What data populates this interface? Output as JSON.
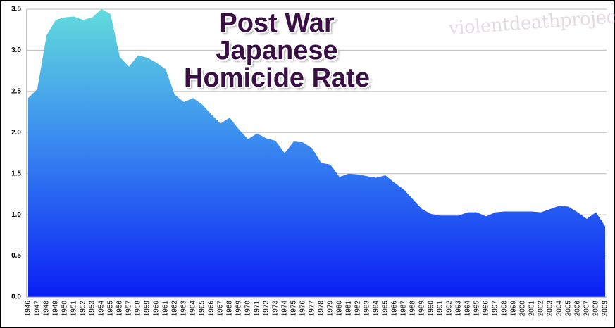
{
  "chart_data": {
    "type": "area",
    "title": "Post War Japanese Homicide Rate",
    "annotation": "violentdeathproject.com",
    "categories": [
      "1946",
      "1947",
      "1948",
      "1949",
      "1950",
      "1951",
      "1952",
      "1953",
      "1954",
      "1955",
      "1956",
      "1957",
      "1958",
      "1959",
      "1960",
      "1961",
      "1962",
      "1963",
      "1964",
      "1965",
      "1966",
      "1967",
      "1968",
      "1969",
      "1970",
      "1971",
      "1972",
      "1973",
      "1974",
      "1975",
      "1976",
      "1977",
      "1978",
      "1979",
      "1980",
      "1981",
      "1982",
      "1983",
      "1984",
      "1985",
      "1986",
      "1987",
      "1988",
      "1989",
      "1990",
      "1991",
      "1992",
      "1993",
      "1994",
      "1995",
      "1996",
      "1997",
      "1998",
      "1999",
      "2000",
      "2001",
      "2002",
      "2003",
      "2004",
      "2005",
      "2006",
      "2007",
      "2008",
      "2009"
    ],
    "values": [
      2.42,
      2.53,
      3.18,
      3.37,
      3.4,
      3.41,
      3.37,
      3.4,
      3.5,
      3.44,
      2.92,
      2.8,
      2.94,
      2.91,
      2.85,
      2.77,
      2.46,
      2.37,
      2.42,
      2.34,
      2.22,
      2.11,
      2.18,
      2.04,
      1.92,
      1.99,
      1.93,
      1.9,
      1.75,
      1.89,
      1.88,
      1.81,
      1.63,
      1.61,
      1.46,
      1.5,
      1.49,
      1.47,
      1.45,
      1.48,
      1.39,
      1.31,
      1.19,
      1.07,
      1.01,
      0.99,
      0.99,
      0.99,
      1.03,
      1.03,
      0.98,
      1.03,
      1.04,
      1.04,
      1.04,
      1.04,
      1.03,
      1.07,
      1.11,
      1.1,
      1.03,
      0.95,
      1.03,
      0.86
    ],
    "color": "#0a1ef5",
    "color_top": "#62dcdc",
    "ylim": [
      0,
      3.5
    ],
    "yticks": [
      {
        "value": 0,
        "label": "0.0"
      },
      0.5,
      {
        "value": 1,
        "label": "1.0"
      },
      1.5,
      {
        "value": 2,
        "label": "2.0"
      },
      2.5,
      {
        "value": 3,
        "label": "3.0"
      },
      3.5
    ],
    "grid": true
  }
}
